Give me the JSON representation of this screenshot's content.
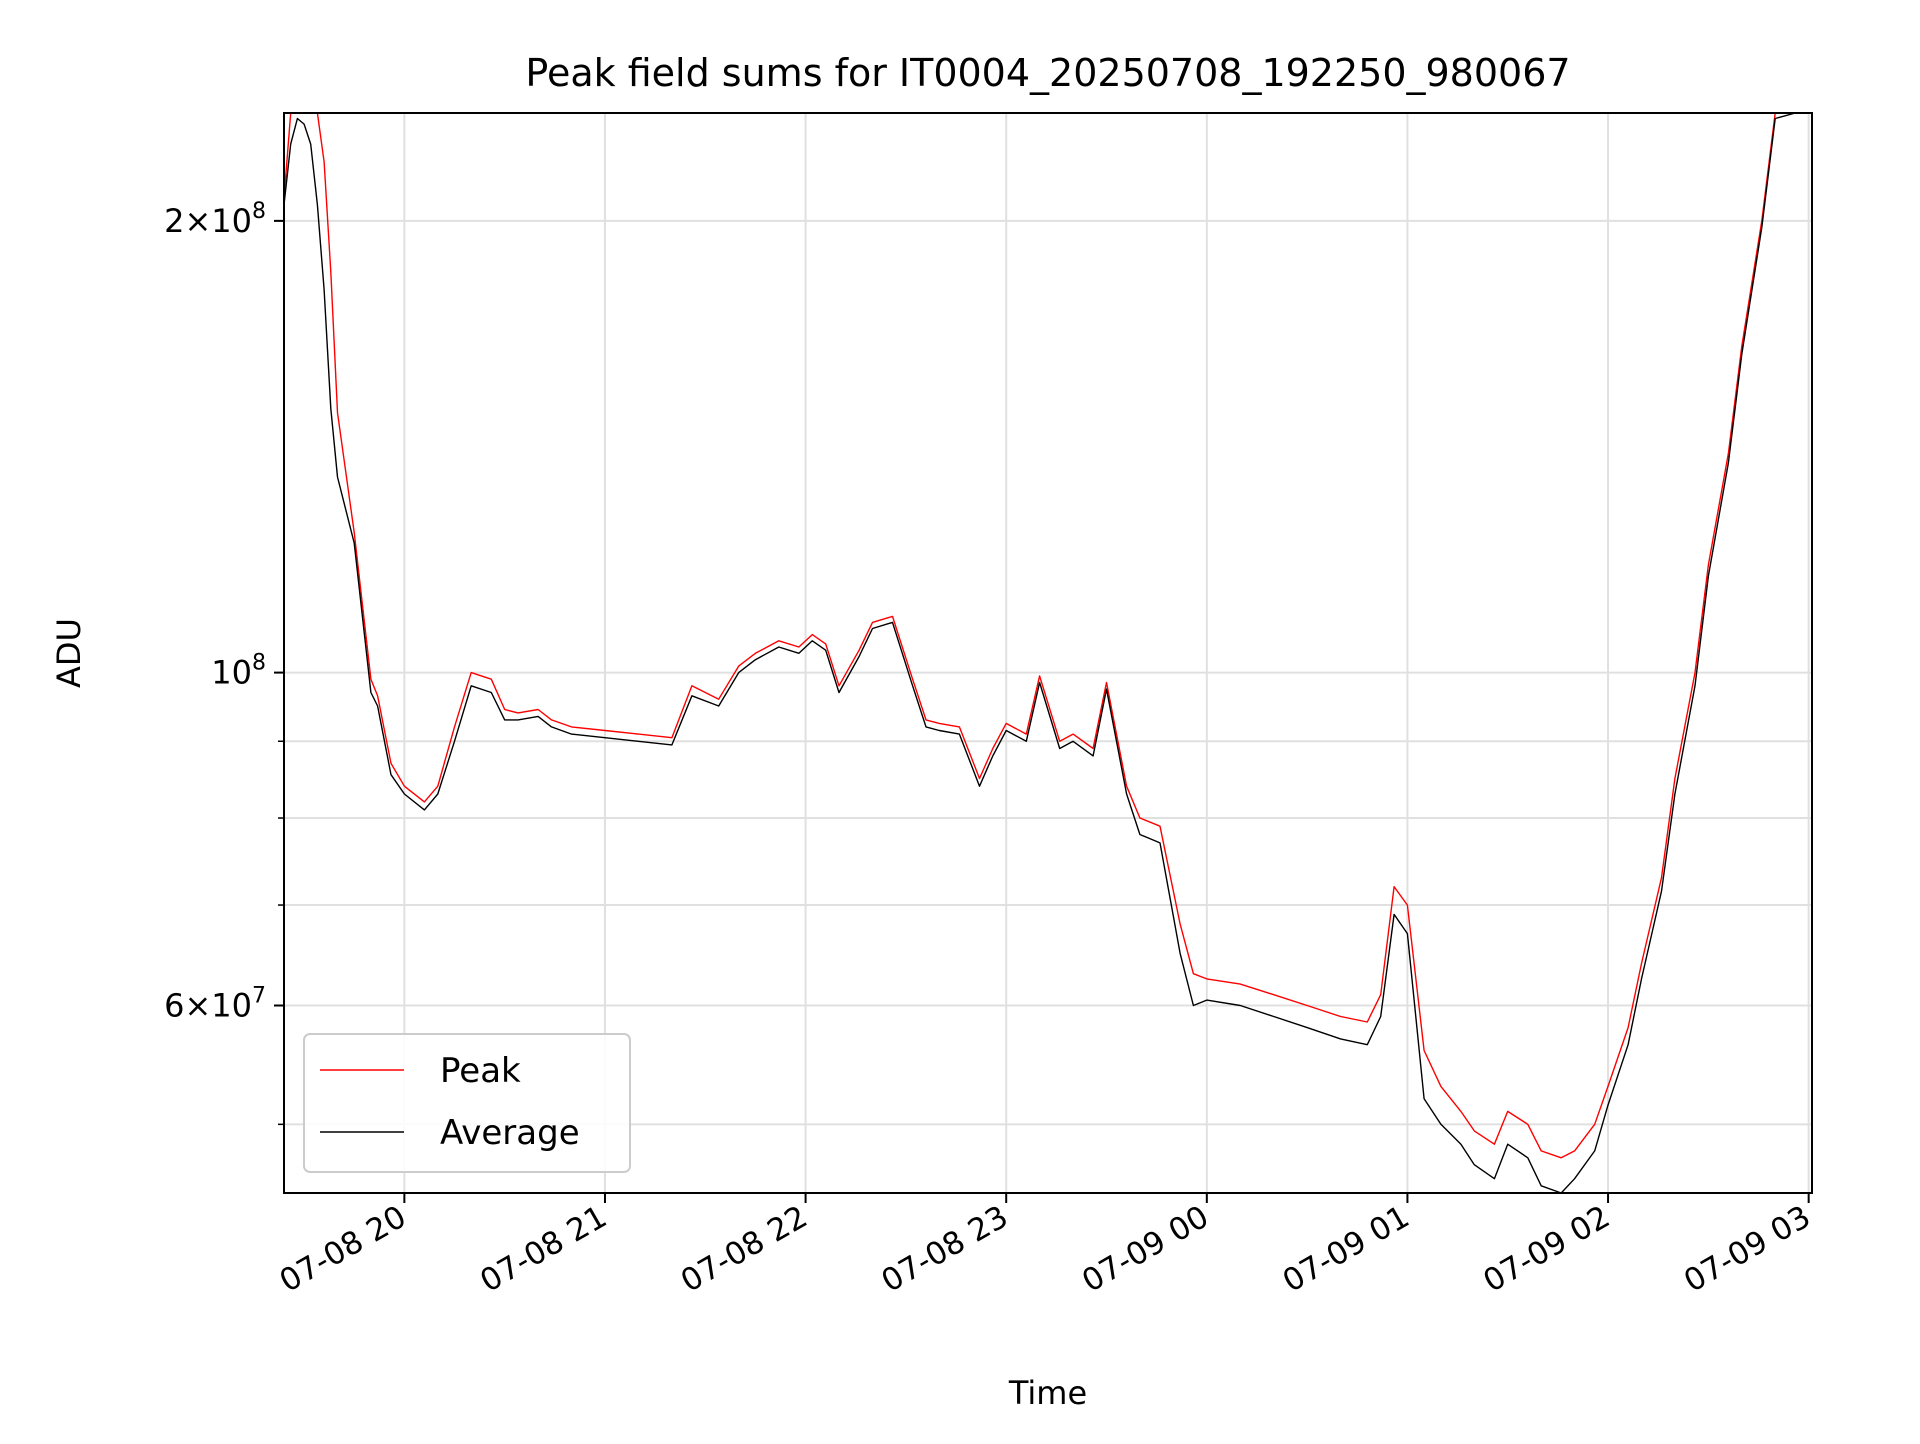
{
  "chart_data": {
    "type": "line",
    "title": "Peak field sums for IT0004_20250708_192250_980067",
    "xlabel": "Time",
    "ylabel": "ADU",
    "yscale": "log",
    "grid": true,
    "legend_position": "lower-left",
    "xlim": [
      "2025-07-08 19:24",
      "2025-07-09 03:01"
    ],
    "ylim": [
      45000000,
      236000000
    ],
    "x_ticks": [
      "07-08 20",
      "07-08 21",
      "07-08 22",
      "07-08 23",
      "07-09 00",
      "07-09 01",
      "07-09 02",
      "07-09 03"
    ],
    "y_ticks": [
      {
        "value": 60000000,
        "base": "6",
        "exp": "7"
      },
      {
        "value": 100000000,
        "base": "",
        "exp": "8"
      },
      {
        "value": 200000000,
        "base": "2",
        "exp": "8"
      }
    ],
    "series": [
      {
        "name": "Peak",
        "color": "#ff0000",
        "x": [
          "2025-07-08 19:24",
          "2025-07-08 19:26",
          "2025-07-08 19:28",
          "2025-07-08 19:30",
          "2025-07-08 19:32",
          "2025-07-08 19:34",
          "2025-07-08 19:36",
          "2025-07-08 19:38",
          "2025-07-08 19:40",
          "2025-07-08 19:45",
          "2025-07-08 19:50",
          "2025-07-08 19:52",
          "2025-07-08 19:56",
          "2025-07-08 20:00",
          "2025-07-08 20:06",
          "2025-07-08 20:10",
          "2025-07-08 20:15",
          "2025-07-08 20:20",
          "2025-07-08 20:26",
          "2025-07-08 20:30",
          "2025-07-08 20:34",
          "2025-07-08 20:40",
          "2025-07-08 20:44",
          "2025-07-08 20:50",
          "2025-07-08 21:00",
          "2025-07-08 21:10",
          "2025-07-08 21:20",
          "2025-07-08 21:26",
          "2025-07-08 21:34",
          "2025-07-08 21:40",
          "2025-07-08 21:45",
          "2025-07-08 21:52",
          "2025-07-08 21:58",
          "2025-07-08 22:02",
          "2025-07-08 22:06",
          "2025-07-08 22:10",
          "2025-07-08 22:16",
          "2025-07-08 22:20",
          "2025-07-08 22:26",
          "2025-07-08 22:32",
          "2025-07-08 22:36",
          "2025-07-08 22:40",
          "2025-07-08 22:46",
          "2025-07-08 22:52",
          "2025-07-08 22:56",
          "2025-07-08 23:00",
          "2025-07-08 23:06",
          "2025-07-08 23:10",
          "2025-07-08 23:16",
          "2025-07-08 23:20",
          "2025-07-08 23:26",
          "2025-07-08 23:30",
          "2025-07-08 23:36",
          "2025-07-08 23:40",
          "2025-07-08 23:46",
          "2025-07-08 23:52",
          "2025-07-08 23:56",
          "2025-07-09 00:00",
          "2025-07-09 00:10",
          "2025-07-09 00:20",
          "2025-07-09 00:30",
          "2025-07-09 00:40",
          "2025-07-09 00:48",
          "2025-07-09 00:52",
          "2025-07-09 00:56",
          "2025-07-09 01:00",
          "2025-07-09 01:05",
          "2025-07-09 01:10",
          "2025-07-09 01:16",
          "2025-07-09 01:20",
          "2025-07-09 01:26",
          "2025-07-09 01:30",
          "2025-07-09 01:36",
          "2025-07-09 01:40",
          "2025-07-09 01:46",
          "2025-07-09 01:50",
          "2025-07-09 01:56",
          "2025-07-09 02:00",
          "2025-07-09 02:06",
          "2025-07-09 02:10",
          "2025-07-09 02:16",
          "2025-07-09 02:20",
          "2025-07-09 02:26",
          "2025-07-09 02:30",
          "2025-07-09 02:36",
          "2025-07-09 02:40",
          "2025-07-09 02:46",
          "2025-07-09 02:50",
          "2025-07-09 02:56"
        ],
        "values": [
          207000000,
          236000000,
          236000000,
          236000000,
          236000000,
          236000000,
          219000000,
          185000000,
          149000000,
          124000000,
          99000000,
          96500000,
          87000000,
          84000000,
          82000000,
          84000000,
          92000000,
          100000000,
          99000000,
          94500000,
          94000000,
          94500000,
          93000000,
          92000000,
          91500000,
          91000000,
          90500000,
          98000000,
          96000000,
          101000000,
          103000000,
          105000000,
          104000000,
          106000000,
          104500000,
          98000000,
          103500000,
          108000000,
          109000000,
          99000000,
          93000000,
          92500000,
          92000000,
          85000000,
          89000000,
          92500000,
          91000000,
          99500000,
          90000000,
          91000000,
          89000000,
          98500000,
          84000000,
          80000000,
          79000000,
          68000000,
          63000000,
          62500000,
          62000000,
          61000000,
          60000000,
          59000000,
          58500000,
          61000000,
          72000000,
          70000000,
          56000000,
          53000000,
          51000000,
          49500000,
          48500000,
          51000000,
          50000000,
          48000000,
          47500000,
          48000000,
          50000000,
          53000000,
          58000000,
          64000000,
          73000000,
          85000000,
          100000000,
          118000000,
          140000000,
          165000000,
          200000000,
          236000000,
          236000000
        ]
      },
      {
        "name": "Average",
        "color": "#000000",
        "x": [
          "2025-07-08 19:24",
          "2025-07-08 19:26",
          "2025-07-08 19:28",
          "2025-07-08 19:30",
          "2025-07-08 19:32",
          "2025-07-08 19:34",
          "2025-07-08 19:36",
          "2025-07-08 19:38",
          "2025-07-08 19:40",
          "2025-07-08 19:45",
          "2025-07-08 19:50",
          "2025-07-08 19:52",
          "2025-07-08 19:56",
          "2025-07-08 20:00",
          "2025-07-08 20:06",
          "2025-07-08 20:10",
          "2025-07-08 20:15",
          "2025-07-08 20:20",
          "2025-07-08 20:26",
          "2025-07-08 20:30",
          "2025-07-08 20:34",
          "2025-07-08 20:40",
          "2025-07-08 20:44",
          "2025-07-08 20:50",
          "2025-07-08 21:00",
          "2025-07-08 21:10",
          "2025-07-08 21:20",
          "2025-07-08 21:26",
          "2025-07-08 21:34",
          "2025-07-08 21:40",
          "2025-07-08 21:45",
          "2025-07-08 21:52",
          "2025-07-08 21:58",
          "2025-07-08 22:02",
          "2025-07-08 22:06",
          "2025-07-08 22:10",
          "2025-07-08 22:16",
          "2025-07-08 22:20",
          "2025-07-08 22:26",
          "2025-07-08 22:32",
          "2025-07-08 22:36",
          "2025-07-08 22:40",
          "2025-07-08 22:46",
          "2025-07-08 22:52",
          "2025-07-08 22:56",
          "2025-07-08 23:00",
          "2025-07-08 23:06",
          "2025-07-08 23:10",
          "2025-07-08 23:16",
          "2025-07-08 23:20",
          "2025-07-08 23:26",
          "2025-07-08 23:30",
          "2025-07-08 23:36",
          "2025-07-08 23:40",
          "2025-07-08 23:46",
          "2025-07-08 23:52",
          "2025-07-08 23:56",
          "2025-07-09 00:00",
          "2025-07-09 00:10",
          "2025-07-09 00:20",
          "2025-07-09 00:30",
          "2025-07-09 00:40",
          "2025-07-09 00:48",
          "2025-07-09 00:52",
          "2025-07-09 00:56",
          "2025-07-09 01:00",
          "2025-07-09 01:05",
          "2025-07-09 01:10",
          "2025-07-09 01:16",
          "2025-07-09 01:20",
          "2025-07-09 01:26",
          "2025-07-09 01:30",
          "2025-07-09 01:36",
          "2025-07-09 01:40",
          "2025-07-09 01:46",
          "2025-07-09 01:50",
          "2025-07-09 01:56",
          "2025-07-09 02:00",
          "2025-07-09 02:06",
          "2025-07-09 02:10",
          "2025-07-09 02:16",
          "2025-07-09 02:20",
          "2025-07-09 02:26",
          "2025-07-09 02:30",
          "2025-07-09 02:36",
          "2025-07-09 02:40",
          "2025-07-09 02:46",
          "2025-07-09 02:50",
          "2025-07-09 02:56"
        ],
        "values": [
          205000000,
          225000000,
          234000000,
          232000000,
          225000000,
          205000000,
          180000000,
          150000000,
          135000000,
          122000000,
          97000000,
          95000000,
          85500000,
          83000000,
          81000000,
          83000000,
          90000000,
          98000000,
          97000000,
          93000000,
          93000000,
          93500000,
          92000000,
          91000000,
          90500000,
          90000000,
          89500000,
          96500000,
          95000000,
          100000000,
          102000000,
          104000000,
          103000000,
          105000000,
          103500000,
          97000000,
          102500000,
          107000000,
          108000000,
          98000000,
          92000000,
          91500000,
          91000000,
          84000000,
          88000000,
          91500000,
          90000000,
          98500000,
          89000000,
          90000000,
          88000000,
          97500000,
          83000000,
          78000000,
          77000000,
          65000000,
          60000000,
          60500000,
          60000000,
          59000000,
          58000000,
          57000000,
          56500000,
          59000000,
          69000000,
          67000000,
          52000000,
          50000000,
          48500000,
          47000000,
          46000000,
          48500000,
          47500000,
          45500000,
          45000000,
          46000000,
          48000000,
          51500000,
          56500000,
          62500000,
          71500000,
          83000000,
          98000000,
          116000000,
          138000000,
          163000000,
          198000000,
          234000000,
          236000000
        ]
      }
    ]
  }
}
